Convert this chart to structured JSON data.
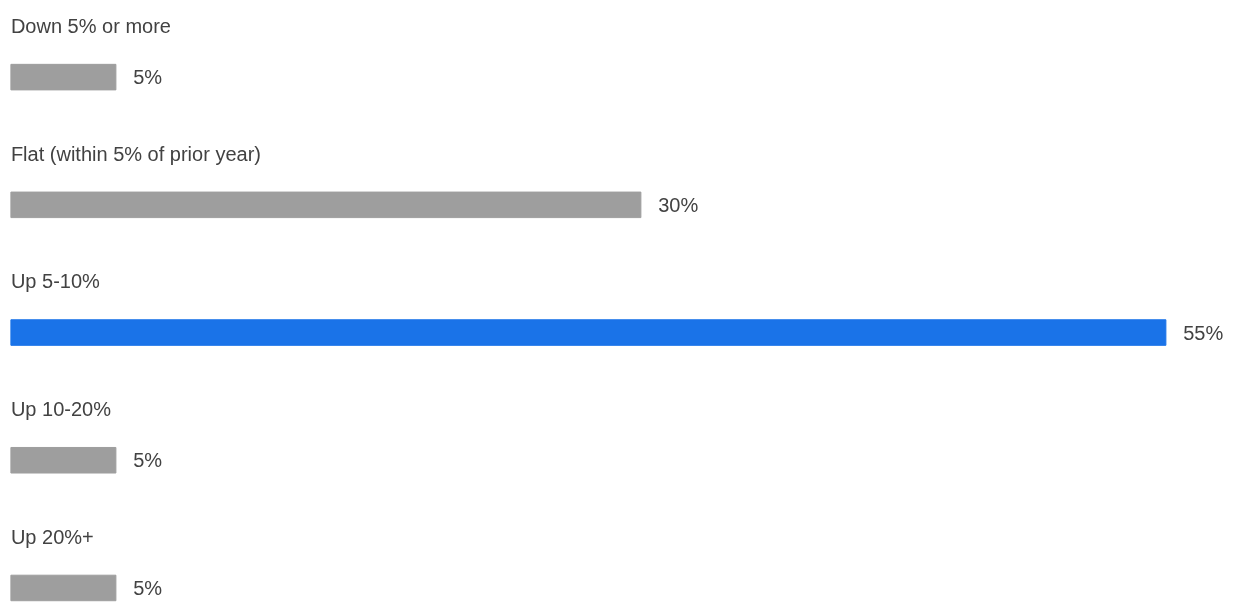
{
  "chart_data": {
    "type": "bar",
    "orientation": "horizontal",
    "categories": [
      "Down 5% or more",
      "Flat (within 5% of prior year)",
      "Up 5-10%",
      "Up 10-20%",
      "Up 20%+"
    ],
    "values": [
      5,
      30,
      55,
      5,
      5
    ],
    "colors": [
      "#9e9e9e",
      "#9e9e9e",
      "#1a73e8",
      "#9e9e9e",
      "#9e9e9e"
    ],
    "value_labels": [
      "5%",
      "30%",
      "55%",
      "5%",
      "5%"
    ],
    "tick_labels": false
  }
}
